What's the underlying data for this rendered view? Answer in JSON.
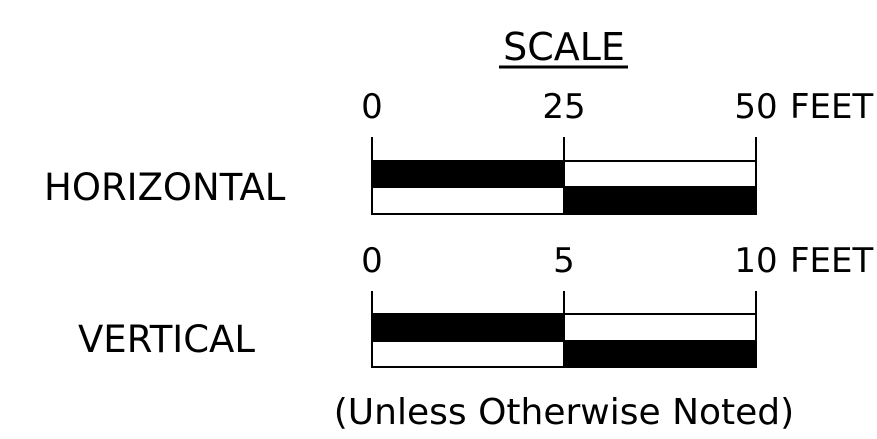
{
  "title": "SCALE",
  "note": "(Unless Otherwise Noted)",
  "colors": {
    "ink": "#000000",
    "paper": "#ffffff"
  },
  "horizontal": {
    "label": "HORIZONTAL",
    "ticks": [
      "0",
      "25",
      "50"
    ],
    "unit": "FEET"
  },
  "vertical": {
    "label": "VERTICAL",
    "ticks": [
      "0",
      "5",
      "10"
    ],
    "unit": "FEET"
  }
}
